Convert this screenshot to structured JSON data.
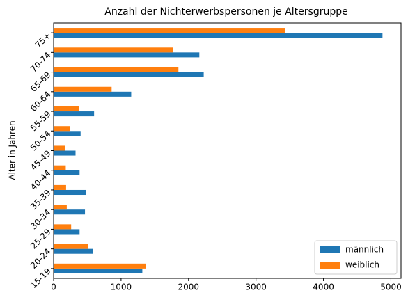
{
  "chart_data": {
    "type": "barh",
    "title": "Anzahl der Nichterwerbspersonen je Altersgruppe",
    "y_label": "Alter in Jahren",
    "categories": [
      "15-19",
      "20-24",
      "25-29",
      "30-34",
      "35-39",
      "40-44",
      "45-49",
      "50-54",
      "55-59",
      "60-64",
      "65-69",
      "70-74",
      "75+"
    ],
    "series": [
      {
        "name": "männlich",
        "color": "#1f77b4",
        "values": [
          1315,
          580,
          385,
          465,
          475,
          385,
          325,
          400,
          600,
          1150,
          2225,
          2160,
          4875
        ]
      },
      {
        "name": "weiblich",
        "color": "#ff7f0e",
        "values": [
          1365,
          510,
          260,
          195,
          185,
          180,
          165,
          240,
          375,
          860,
          1850,
          1770,
          3430
        ]
      }
    ],
    "xlim": [
      0,
      5150
    ],
    "xticks": [
      0,
      1000,
      2000,
      3000,
      4000,
      5000
    ],
    "legend": "lower right"
  }
}
